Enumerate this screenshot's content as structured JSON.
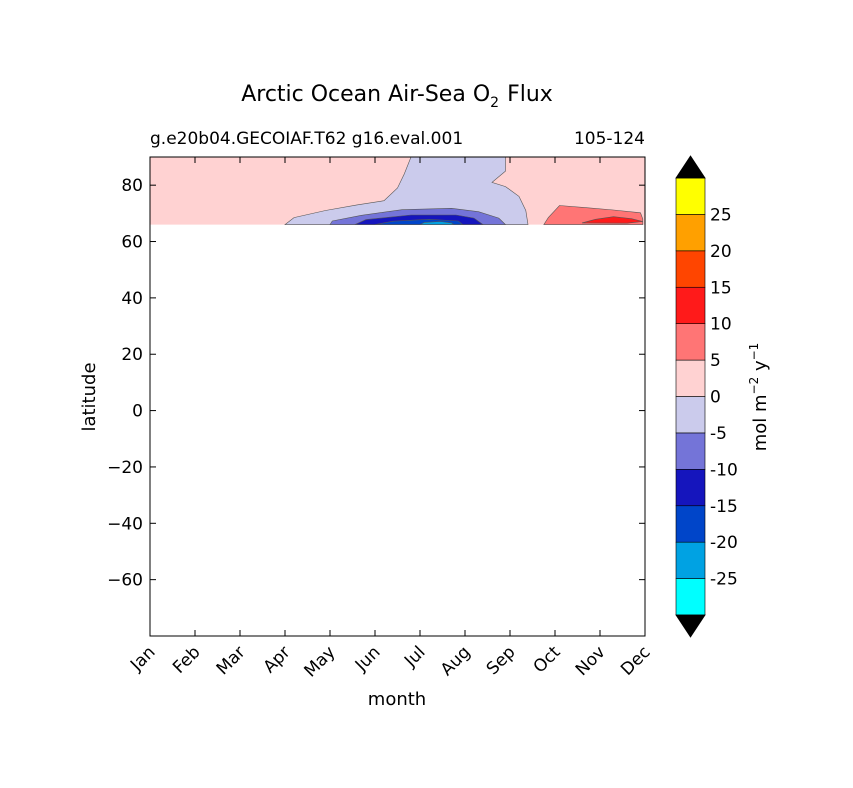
{
  "chart_data": {
    "type": "heatmap",
    "title_main": "Arctic Ocean Air-Sea O",
    "title_sub": "2",
    "title_end": "Flux",
    "subtitle_left": "g.e20b04.GECOIAF.T62 g16.eval.001",
    "subtitle_right": "105-124",
    "xlabel": "month",
    "ylabel": "latitude",
    "x_categories": [
      "Jan",
      "Feb",
      "Mar",
      "Apr",
      "May",
      "Jun",
      "Jul",
      "Aug",
      "Sep",
      "Oct",
      "Nov",
      "Dec"
    ],
    "xlim": [
      0,
      11
    ],
    "ylim": [
      -80,
      90
    ],
    "yticks": [
      80,
      60,
      40,
      20,
      0,
      -20,
      -40,
      -60
    ],
    "ytick_labels": [
      "80",
      "60",
      "40",
      "20",
      "0",
      "−20",
      "−40",
      "−60"
    ],
    "data_lat_range": [
      66,
      90
    ],
    "colorbar": {
      "label_main": "mol m",
      "label_exp1": "−2",
      "label_mid": " y",
      "label_exp2": "−1",
      "levels": [
        -30,
        -25,
        -20,
        -15,
        -10,
        -5,
        0,
        5,
        10,
        15,
        20,
        25,
        30
      ],
      "tick_values": [
        -25,
        -20,
        -15,
        -10,
        -5,
        0,
        5,
        10,
        15,
        20,
        25
      ],
      "tick_labels": [
        "-25",
        "-20",
        "-15",
        "-10",
        "-5",
        "0",
        "5",
        "10",
        "15",
        "20",
        "25"
      ],
      "colors": [
        "#00ffff",
        "#00a2e3",
        "#0045c9",
        "#1515bd",
        "#7474d8",
        "#cbcbec",
        "#ffd2d2",
        "#ff7575",
        "#ff1a1a",
        "#ff4500",
        "#ffa000",
        "#ffff00"
      ],
      "extend_colors": [
        "#000000",
        "#000000"
      ]
    },
    "contour_regions": [
      {
        "level": "0 to 5",
        "color": "#ffd2d2",
        "shape": "background",
        "points": [
          [
            0,
            66
          ],
          [
            11,
            66
          ],
          [
            11,
            90
          ],
          [
            0,
            90
          ]
        ]
      },
      {
        "level": "-5 to 0",
        "color": "#cbcbec",
        "shape": "negative-band",
        "points": [
          [
            3.0,
            66
          ],
          [
            3.2,
            68.5
          ],
          [
            3.9,
            71
          ],
          [
            4.6,
            73
          ],
          [
            5.2,
            74.5
          ],
          [
            5.5,
            79
          ],
          [
            5.65,
            84
          ],
          [
            5.8,
            90
          ],
          [
            7.9,
            90
          ],
          [
            7.9,
            85
          ],
          [
            7.6,
            81
          ],
          [
            7.9,
            79.5
          ],
          [
            8.2,
            76
          ],
          [
            8.35,
            71
          ],
          [
            8.4,
            66
          ]
        ]
      },
      {
        "level": "-10 to -5",
        "color": "#7474d8",
        "shape": "core-outer",
        "points": [
          [
            4.0,
            66
          ],
          [
            4.05,
            67.3
          ],
          [
            4.7,
            69.3
          ],
          [
            5.6,
            71.3
          ],
          [
            6.7,
            71.8
          ],
          [
            7.3,
            70.6
          ],
          [
            7.75,
            68.3
          ],
          [
            7.9,
            66
          ]
        ]
      },
      {
        "level": "-15 to -10",
        "color": "#1515bd",
        "shape": "core-mid",
        "points": [
          [
            4.55,
            66
          ],
          [
            4.8,
            67.8
          ],
          [
            5.8,
            69.4
          ],
          [
            6.8,
            69.4
          ],
          [
            7.2,
            68.3
          ],
          [
            7.4,
            66
          ]
        ]
      },
      {
        "level": "-20 to -15",
        "color": "#0045c9",
        "shape": "core-inner",
        "points": [
          [
            5.0,
            66
          ],
          [
            5.4,
            67.2
          ],
          [
            6.2,
            67.9
          ],
          [
            6.85,
            67.3
          ],
          [
            6.95,
            66
          ]
        ]
      },
      {
        "level": "-25 to -20",
        "color": "#00a2e3",
        "shape": "core-center",
        "points": [
          [
            6.0,
            66
          ],
          [
            6.1,
            66.8
          ],
          [
            6.45,
            67.1
          ],
          [
            6.7,
            66.6
          ],
          [
            6.75,
            66
          ]
        ]
      },
      {
        "level": "5 to 10",
        "color": "#ff7575",
        "shape": "positive-patch",
        "points": [
          [
            8.75,
            66
          ],
          [
            8.85,
            68.5
          ],
          [
            9.1,
            72.8
          ],
          [
            9.7,
            72
          ],
          [
            10.3,
            71.2
          ],
          [
            10.9,
            70.2
          ],
          [
            10.95,
            68
          ],
          [
            10.95,
            66
          ]
        ]
      },
      {
        "level": "10 to 15",
        "color": "#ff1a1a",
        "shape": "positive-core",
        "points": [
          [
            9.6,
            66.6
          ],
          [
            9.9,
            67.9
          ],
          [
            10.3,
            68.8
          ],
          [
            10.7,
            68.1
          ],
          [
            10.95,
            67.1
          ],
          [
            10.6,
            66.5
          ]
        ]
      }
    ]
  }
}
